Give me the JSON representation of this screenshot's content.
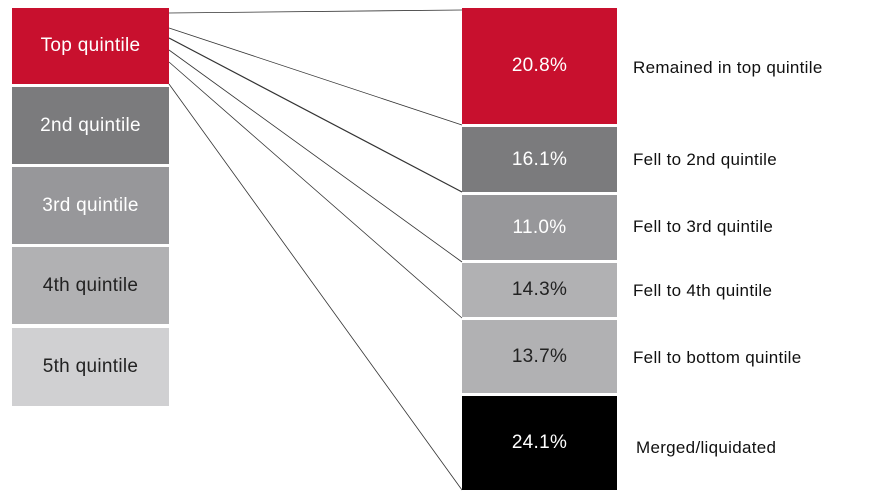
{
  "left": {
    "items": [
      "Top quintile",
      "2nd quintile",
      "3rd quintile",
      "4th quintile",
      "5th quintile"
    ]
  },
  "right": {
    "items": [
      {
        "value": "20.8%",
        "label": "Remained in top quintile"
      },
      {
        "value": "16.1%",
        "label": "Fell to 2nd quintile"
      },
      {
        "value": "11.0%",
        "label": "Fell to 3rd quintile"
      },
      {
        "value": "14.3%",
        "label": "Fell to 4th quintile"
      },
      {
        "value": "13.7%",
        "label": "Fell to bottom quintile"
      },
      {
        "value": "24.1%",
        "label": "Merged/liquidated"
      }
    ]
  }
}
